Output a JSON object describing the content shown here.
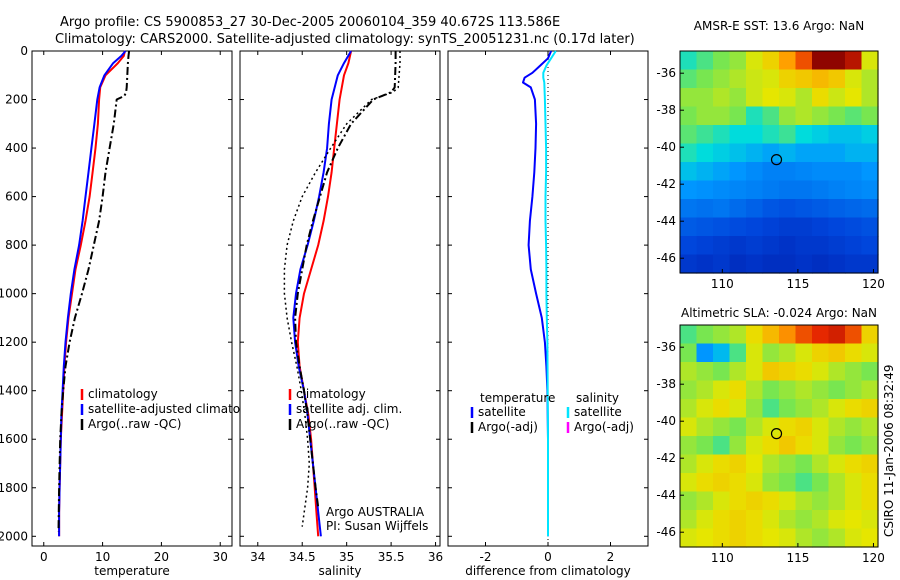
{
  "header": {
    "line1": "Argo profile: CS 5900853_27 30-Dec-2005 20060104_359 40.672S 113.586E",
    "line2": "Climatology: CARS2000. Satellite-adjusted climatology: synTS_20051231.nc (0.17d later)"
  },
  "colors": {
    "climatology": "#ff0000",
    "satellite": "#0000ff",
    "argo": "#000000",
    "salinity_satellite": "#00e5ff",
    "salinity_argo": "#ff00ff",
    "marker": "#000000"
  },
  "chart_data": [
    {
      "type": "line",
      "xlabel": "temperature",
      "xlim": [
        -2,
        32
      ],
      "xticks": [
        0,
        10,
        20,
        30
      ],
      "ylim": [
        0,
        2040
      ],
      "yticks": [
        0,
        200,
        400,
        600,
        800,
        1000,
        1200,
        1400,
        1600,
        1800,
        2000
      ],
      "y_reversed": true,
      "legend": {
        "position": "lower-right",
        "entries": [
          "climatology",
          "satellite-adjusted climatology",
          "Argo(..raw -QC)"
        ]
      },
      "series": [
        {
          "name": "climatology",
          "style": "solid",
          "x": [
            13.8,
            13.6,
            12.6,
            10.5,
            9.6,
            9.4,
            9.2,
            8.8,
            8.3,
            7.8,
            7.1,
            6.3,
            5.4,
            4.8,
            4.2,
            3.8,
            3.5,
            3.3,
            3.1,
            2.9,
            2.8,
            2.7,
            2.6,
            2.6
          ],
          "y": [
            0,
            20,
            50,
            100,
            150,
            200,
            300,
            400,
            500,
            600,
            700,
            800,
            900,
            1000,
            1100,
            1200,
            1300,
            1400,
            1500,
            1600,
            1700,
            1800,
            1900,
            2000
          ]
        },
        {
          "name": "satellite-adjusted climatology",
          "style": "solid",
          "x": [
            13.9,
            13.2,
            11.8,
            10.3,
            9.5,
            9.1,
            8.6,
            8.1,
            7.6,
            7.1,
            6.6,
            6.0,
            5.2,
            4.6,
            4.1,
            3.7,
            3.4,
            3.2,
            3.0,
            2.9,
            2.8,
            2.7,
            2.6,
            2.6
          ],
          "y": [
            0,
            20,
            50,
            100,
            150,
            200,
            300,
            400,
            500,
            600,
            700,
            800,
            900,
            1000,
            1100,
            1200,
            1300,
            1400,
            1500,
            1600,
            1700,
            1800,
            1900,
            2000
          ]
        },
        {
          "name": "Argo(..raw -QC)",
          "style": "dashdot",
          "x": [
            14.5,
            14.4,
            14.3,
            14.2,
            14.1,
            14.0,
            13.7,
            12.4,
            11.9,
            11.2,
            10.5,
            10.0,
            9.4,
            8.5,
            7.6,
            6.5,
            5.3,
            4.4,
            3.7,
            3.3,
            3.0,
            2.8,
            2.6,
            2.5
          ],
          "y": [
            0,
            20,
            50,
            100,
            150,
            170,
            185,
            200,
            300,
            400,
            500,
            600,
            700,
            800,
            900,
            1000,
            1100,
            1200,
            1300,
            1400,
            1500,
            1600,
            1800,
            1980
          ]
        }
      ]
    },
    {
      "type": "line",
      "xlabel": "salinity",
      "xlim": [
        33.8,
        36.05
      ],
      "xticks": [
        34,
        34.5,
        35,
        35.5,
        36
      ],
      "ylim": [
        0,
        2040
      ],
      "y_reversed": true,
      "legend": {
        "position": "lower-right",
        "entries": [
          "climatology",
          "satellite adj. clim.",
          "Argo(..raw -QC)"
        ]
      },
      "annotation": [
        "Argo AUSTRALIA",
        "PI: Susan Wijffels"
      ],
      "series": [
        {
          "name": "climatology",
          "style": "solid",
          "x": [
            35.05,
            35.02,
            34.97,
            34.92,
            34.89,
            34.86,
            34.83,
            34.79,
            34.74,
            34.68,
            34.6,
            34.52,
            34.47,
            34.45,
            34.47,
            34.52,
            34.57,
            34.6,
            34.62,
            34.64,
            34.66,
            34.68
          ],
          "y": [
            0,
            50,
            100,
            200,
            300,
            400,
            500,
            600,
            700,
            800,
            900,
            1000,
            1100,
            1200,
            1300,
            1400,
            1500,
            1600,
            1700,
            1800,
            1900,
            2000
          ]
        },
        {
          "name": "satellite adj. clim.",
          "style": "solid",
          "x": [
            35.05,
            34.97,
            34.9,
            34.83,
            34.8,
            34.78,
            34.74,
            34.69,
            34.63,
            34.56,
            34.48,
            34.43,
            34.4,
            34.42,
            34.46,
            34.52,
            34.56,
            34.59,
            34.62,
            34.65,
            34.68,
            34.71
          ],
          "y": [
            0,
            50,
            100,
            200,
            300,
            400,
            500,
            600,
            700,
            800,
            900,
            1000,
            1100,
            1200,
            1300,
            1400,
            1500,
            1600,
            1700,
            1800,
            1900,
            2000
          ]
        },
        {
          "name": "Argo(..raw -QC)",
          "style": "dashdot",
          "x": [
            35.55,
            35.55,
            35.54,
            35.5,
            35.3,
            35.05,
            34.9,
            34.78,
            34.7,
            34.62,
            34.55,
            34.5,
            34.45,
            34.42,
            34.43,
            34.47,
            34.52,
            34.56,
            34.59,
            34.62,
            34.65,
            34.68
          ],
          "y": [
            0,
            50,
            150,
            170,
            200,
            300,
            400,
            500,
            600,
            700,
            800,
            900,
            1000,
            1100,
            1200,
            1300,
            1400,
            1500,
            1600,
            1700,
            1800,
            1880
          ]
        },
        {
          "name": "Argo(..raw -QC) (raw)",
          "style": "dotted",
          "x": [
            35.6,
            35.6,
            35.58,
            35.52,
            35.28,
            35.0,
            34.82,
            34.65,
            34.5,
            34.4,
            34.33,
            34.3,
            34.3,
            34.33,
            34.38,
            34.44,
            34.49,
            34.53,
            34.56,
            34.58,
            34.56,
            34.5
          ],
          "y": [
            0,
            50,
            150,
            170,
            200,
            300,
            400,
            500,
            600,
            700,
            800,
            900,
            1000,
            1100,
            1200,
            1300,
            1400,
            1500,
            1600,
            1700,
            1800,
            1960
          ]
        }
      ]
    },
    {
      "type": "line",
      "xlabel": "difference from climatology",
      "xlim": [
        -3.2,
        3.2
      ],
      "xticks": [
        -2,
        0,
        2
      ],
      "ylim": [
        0,
        2040
      ],
      "y_reversed": true,
      "zero_line": true,
      "legend": {
        "position": "lower-right",
        "groups": [
          {
            "title": "temperature",
            "entries": [
              "satellite",
              "Argo(-adj)"
            ]
          },
          {
            "title": "salinity",
            "entries": [
              "satellite",
              "Argo(-adj)"
            ]
          }
        ]
      },
      "series": [
        {
          "name": "temperature satellite",
          "style": "solid",
          "x": [
            0.1,
            0,
            -0.25,
            -0.5,
            -0.75,
            -0.8,
            -0.55,
            -0.42,
            -0.38,
            -0.4,
            -0.44,
            -0.5,
            -0.58,
            -0.62,
            -0.55,
            -0.38,
            -0.2,
            -0.1,
            -0.05,
            -0.02,
            0,
            0
          ],
          "y": [
            0,
            30,
            60,
            90,
            110,
            130,
            150,
            200,
            300,
            400,
            500,
            600,
            700,
            800,
            900,
            1000,
            1100,
            1200,
            1300,
            1400,
            1600,
            2000
          ]
        },
        {
          "name": "salinity satellite",
          "style": "solid",
          "x": [
            0.25,
            0.1,
            -0.05,
            -0.15,
            -0.15,
            -0.12,
            -0.1,
            -0.08,
            -0.06,
            -0.06,
            -0.08,
            -0.08,
            -0.06,
            -0.05,
            -0.05,
            -0.04,
            -0.02,
            -0.01,
            0,
            0
          ],
          "y": [
            0,
            30,
            60,
            90,
            110,
            130,
            200,
            300,
            400,
            500,
            600,
            700,
            800,
            900,
            1000,
            1100,
            1200,
            1400,
            1600,
            2000
          ]
        }
      ]
    }
  ],
  "maps": [
    {
      "title": "AMSR-E SST: 13.6 Argo: NaN",
      "type": "heatmap",
      "variable": "SST",
      "x_ticks": [
        110,
        115,
        120
      ],
      "y_ticks": [
        -36,
        -38,
        -40,
        -42,
        -44,
        -46
      ],
      "lon_range": [
        107.2,
        120.3
      ],
      "lat_range": [
        -46.8,
        -34.8
      ],
      "marker": {
        "lon": 113.586,
        "lat": -40.672
      },
      "heat": [
        [
          0.42,
          0.45,
          0.48,
          0.5,
          0.55,
          0.6,
          0.7,
          0.8,
          0.98,
          0.98,
          0.92,
          0.55
        ],
        [
          0.46,
          0.48,
          0.5,
          0.52,
          0.54,
          0.55,
          0.6,
          0.62,
          0.65,
          0.62,
          0.55,
          0.52
        ],
        [
          0.5,
          0.5,
          0.52,
          0.5,
          0.54,
          0.56,
          0.55,
          0.52,
          0.58,
          0.54,
          0.56,
          0.52
        ],
        [
          0.48,
          0.5,
          0.5,
          0.48,
          0.42,
          0.45,
          0.5,
          0.52,
          0.5,
          0.48,
          0.46,
          0.48
        ],
        [
          0.46,
          0.44,
          0.42,
          0.4,
          0.4,
          0.42,
          0.44,
          0.4,
          0.38,
          0.36,
          0.36,
          0.38
        ],
        [
          0.42,
          0.4,
          0.38,
          0.36,
          0.34,
          0.32,
          0.34,
          0.32,
          0.32,
          0.32,
          0.34,
          0.34
        ],
        [
          0.36,
          0.34,
          0.32,
          0.3,
          0.28,
          0.26,
          0.26,
          0.27,
          0.28,
          0.28,
          0.28,
          0.3
        ],
        [
          0.3,
          0.29,
          0.28,
          0.27,
          0.26,
          0.25,
          0.24,
          0.24,
          0.25,
          0.26,
          0.27,
          0.28
        ],
        [
          0.24,
          0.23,
          0.24,
          0.22,
          0.2,
          0.18,
          0.17,
          0.18,
          0.19,
          0.2,
          0.21,
          0.22
        ],
        [
          0.19,
          0.18,
          0.17,
          0.16,
          0.15,
          0.14,
          0.13,
          0.13,
          0.14,
          0.15,
          0.16,
          0.17
        ],
        [
          0.15,
          0.14,
          0.13,
          0.12,
          0.13,
          0.12,
          0.11,
          0.12,
          0.12,
          0.13,
          0.14,
          0.15
        ],
        [
          0.12,
          0.11,
          0.12,
          0.1,
          0.11,
          0.1,
          0.1,
          0.11,
          0.1,
          0.11,
          0.12,
          0.12
        ]
      ]
    },
    {
      "title": "Altimetric SLA: -0.024 Argo: NaN",
      "type": "heatmap",
      "variable": "SLA",
      "x_ticks": [
        110,
        115,
        120
      ],
      "y_ticks": [
        -36,
        -38,
        -40,
        -42,
        -44,
        -46
      ],
      "lon_range": [
        107.2,
        120.3
      ],
      "lat_range": [
        -46.8,
        -34.8
      ],
      "marker": {
        "lon": 113.586,
        "lat": -40.672
      },
      "heat": [
        [
          0.45,
          0.48,
          0.5,
          0.52,
          0.58,
          0.65,
          0.72,
          0.8,
          0.85,
          0.88,
          0.8,
          0.6
        ],
        [
          0.48,
          0.3,
          0.35,
          0.45,
          0.55,
          0.5,
          0.52,
          0.55,
          0.6,
          0.62,
          0.58,
          0.55
        ],
        [
          0.52,
          0.5,
          0.48,
          0.52,
          0.55,
          0.62,
          0.6,
          0.58,
          0.55,
          0.52,
          0.5,
          0.48
        ],
        [
          0.5,
          0.52,
          0.55,
          0.58,
          0.52,
          0.48,
          0.5,
          0.52,
          0.5,
          0.48,
          0.5,
          0.52
        ],
        [
          0.52,
          0.55,
          0.58,
          0.55,
          0.5,
          0.45,
          0.48,
          0.5,
          0.52,
          0.55,
          0.58,
          0.6
        ],
        [
          0.55,
          0.52,
          0.5,
          0.48,
          0.52,
          0.55,
          0.58,
          0.6,
          0.55,
          0.52,
          0.5,
          0.52
        ],
        [
          0.5,
          0.48,
          0.45,
          0.5,
          0.55,
          0.58,
          0.62,
          0.58,
          0.55,
          0.5,
          0.48,
          0.5
        ],
        [
          0.52,
          0.55,
          0.58,
          0.6,
          0.56,
          0.52,
          0.5,
          0.48,
          0.52,
          0.55,
          0.58,
          0.6
        ],
        [
          0.55,
          0.58,
          0.6,
          0.58,
          0.55,
          0.5,
          0.48,
          0.45,
          0.48,
          0.52,
          0.55,
          0.58
        ],
        [
          0.5,
          0.52,
          0.55,
          0.58,
          0.6,
          0.58,
          0.55,
          0.52,
          0.5,
          0.52,
          0.55,
          0.58
        ],
        [
          0.52,
          0.55,
          0.58,
          0.6,
          0.58,
          0.55,
          0.52,
          0.5,
          0.52,
          0.55,
          0.56,
          0.55
        ],
        [
          0.55,
          0.56,
          0.58,
          0.6,
          0.58,
          0.56,
          0.55,
          0.52,
          0.5,
          0.52,
          0.55,
          0.56
        ]
      ]
    }
  ],
  "footer": {
    "credit": "CSIRO 11-Jan-2006 08:32:49"
  }
}
